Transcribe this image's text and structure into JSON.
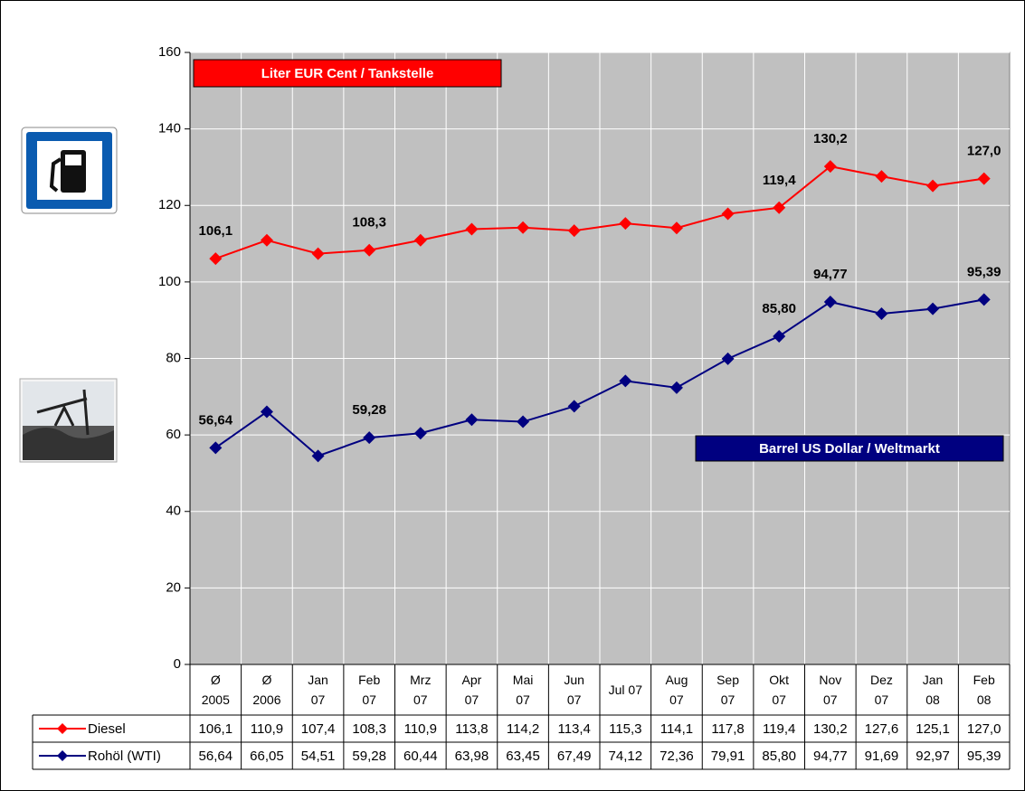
{
  "chart_data": {
    "type": "line",
    "categories": [
      "Ø\n2005",
      "Ø\n2006",
      "Jan\n07",
      "Feb\n07",
      "Mrz\n07",
      "Apr\n07",
      "Mai\n07",
      "Jun\n07",
      "Jul 07",
      "Aug\n07",
      "Sep\n07",
      "Okt\n07",
      "Nov\n07",
      "Dez\n07",
      "Jan\n08",
      "Feb\n08"
    ],
    "series": [
      {
        "name": "Diesel",
        "color": "#ff0000",
        "values": [
          106.1,
          110.9,
          107.4,
          108.3,
          110.9,
          113.8,
          114.2,
          113.4,
          115.3,
          114.1,
          117.8,
          119.4,
          130.2,
          127.6,
          125.1,
          127.0
        ],
        "value_labels": [
          "106,1",
          "110,9",
          "107,4",
          "108,3",
          "110,9",
          "113,8",
          "114,2",
          "113,4",
          "115,3",
          "114,1",
          "117,8",
          "119,4",
          "130,2",
          "127,6",
          "125,1",
          "127,0"
        ]
      },
      {
        "name": "Rohöl (WTI)",
        "color": "#000080",
        "values": [
          56.64,
          66.05,
          54.51,
          59.28,
          60.44,
          63.98,
          63.45,
          67.49,
          74.12,
          72.36,
          79.91,
          85.8,
          94.77,
          91.69,
          92.97,
          95.39
        ],
        "value_labels": [
          "56,64",
          "66,05",
          "54,51",
          "59,28",
          "60,44",
          "63,98",
          "63,45",
          "67,49",
          "74,12",
          "72,36",
          "79,91",
          "85,80",
          "94,77",
          "91,69",
          "92,97",
          "95,39"
        ]
      }
    ],
    "data_label_indices": [
      0,
      3,
      11,
      12,
      15
    ],
    "annotations": [
      "Liter EUR Cent / Tankstelle",
      "Barrel US Dollar / Weltmarkt"
    ],
    "ylim": [
      0,
      160
    ],
    "yticks": [
      0,
      20,
      40,
      60,
      80,
      100,
      120,
      140,
      160
    ],
    "grid": true,
    "plot_background": "#c0c0c0",
    "data_table": true
  }
}
